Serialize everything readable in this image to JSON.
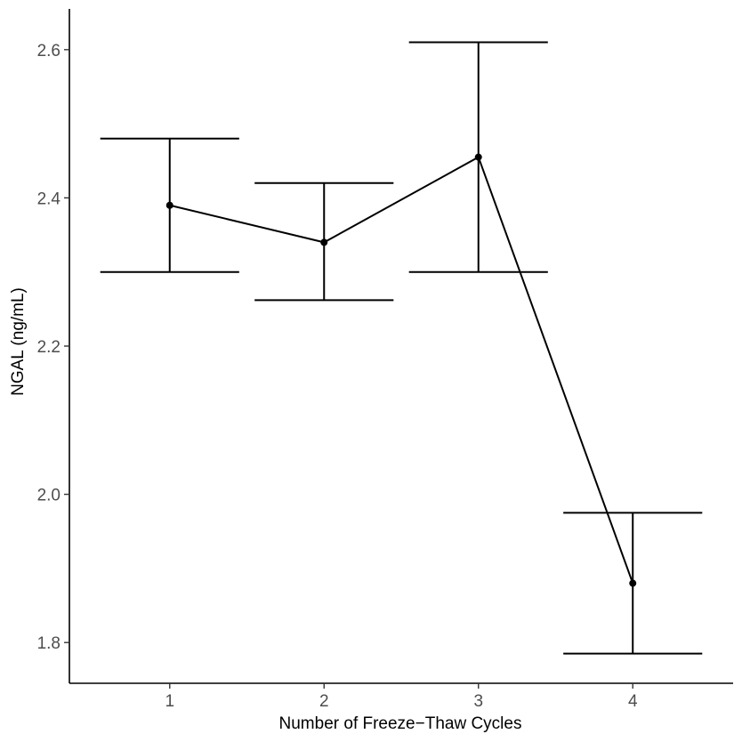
{
  "chart_data": {
    "type": "line",
    "title": "",
    "xlabel": "Number of Freeze−Thaw Cycles",
    "ylabel": "NGAL (ng/mL)",
    "x": [
      1,
      2,
      3,
      4
    ],
    "x_tick_labels": [
      "1",
      "2",
      "3",
      "4"
    ],
    "xlim": [
      0.35,
      4.65
    ],
    "ylim": [
      1.745,
      2.655
    ],
    "y_ticks": [
      1.8,
      2.0,
      2.2,
      2.4,
      2.6
    ],
    "y_tick_labels": [
      "1.8",
      "2.0",
      "2.2",
      "2.4",
      "2.6"
    ],
    "series": [
      {
        "values": [
          2.39,
          2.34,
          2.455,
          1.88
        ],
        "error_low": [
          2.3,
          2.262,
          2.3,
          1.785
        ],
        "error_high": [
          2.48,
          2.42,
          2.61,
          1.975
        ]
      }
    ],
    "grid": false,
    "legend": "none",
    "color": "#000000"
  }
}
